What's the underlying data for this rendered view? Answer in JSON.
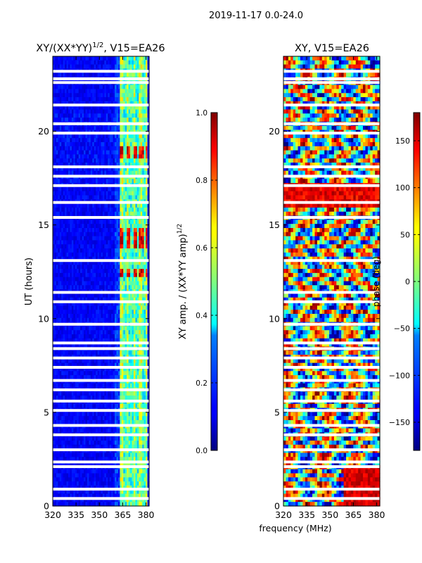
{
  "suptitle": "2019-11-17 0.0-24.0",
  "chart_data": [
    {
      "type": "heatmap",
      "title_main": "XY/(XX*YY)",
      "title_exp": "1/2",
      "title_tail": ", V15=EA26",
      "xlabel": "",
      "ylabel": "UT (hours)",
      "xlim": [
        320,
        382
      ],
      "ylim": [
        0,
        24
      ],
      "xticks": [
        "320",
        "335",
        "350",
        "365",
        "380"
      ],
      "xtick_values": [
        320,
        335,
        350,
        365,
        380
      ],
      "yticks": [
        "0",
        "5",
        "10",
        "15",
        "20"
      ],
      "ytick_values": [
        0,
        5,
        10,
        15,
        20
      ],
      "colormap": "jet",
      "colorbar": {
        "label_main": "XY amp. / (XX*YY amp)",
        "label_exp": "1/2",
        "range": [
          0.0,
          1.0
        ],
        "ticks": [
          "0.0",
          "0.2",
          "0.4",
          "0.6",
          "0.8",
          "1.0"
        ],
        "tick_values": [
          0.0,
          0.2,
          0.4,
          0.6,
          0.8,
          1.0
        ]
      },
      "active_band_mhz": [
        363,
        381
      ],
      "hot_ut_ranges": [
        [
          12.3,
          12.7
        ],
        [
          13.7,
          14.9
        ],
        [
          18.6,
          19.1
        ]
      ],
      "gap_ut": [
        0.4,
        0.9,
        2.1,
        2.35,
        3.0,
        3.8,
        4.3,
        5.1,
        5.6,
        6.2,
        6.7,
        7.4,
        7.9,
        8.4,
        8.7,
        9.7,
        10.9,
        11.4,
        13.1,
        15.4,
        16.2,
        17.1,
        17.6,
        18.1,
        19.9,
        20.4,
        21.4,
        22.6,
        22.8,
        23.2
      ]
    },
    {
      "type": "heatmap",
      "title": "XY, V15=EA26",
      "xlabel": "frequency (MHz)",
      "ylabel": "",
      "xlim": [
        320,
        382
      ],
      "ylim": [
        0,
        24
      ],
      "xticks": [
        "320",
        "335",
        "350",
        "365",
        "380"
      ],
      "xtick_values": [
        320,
        335,
        350,
        365,
        380
      ],
      "yticks": [
        "0",
        "5",
        "10",
        "15",
        "20"
      ],
      "ytick_values": [
        0,
        5,
        10,
        15,
        20
      ],
      "colormap": "jet",
      "colorbar": {
        "label": "phase (deg)",
        "range": [
          -180,
          180
        ],
        "ticks": [
          "−150",
          "−100",
          "−50",
          "0",
          "50",
          "100",
          "150"
        ],
        "tick_values": [
          -150,
          -100,
          -50,
          0,
          50,
          100,
          150
        ]
      },
      "gap_ut": [
        0.4,
        0.9,
        2.1,
        2.35,
        3.0,
        3.8,
        4.3,
        5.1,
        5.6,
        6.2,
        6.7,
        7.4,
        7.9,
        8.4,
        8.7,
        9.7,
        10.9,
        11.4,
        13.1,
        15.4,
        16.2,
        17.1,
        17.6,
        18.1,
        19.9,
        20.4,
        21.4,
        22.6,
        22.8,
        23.2
      ]
    }
  ]
}
